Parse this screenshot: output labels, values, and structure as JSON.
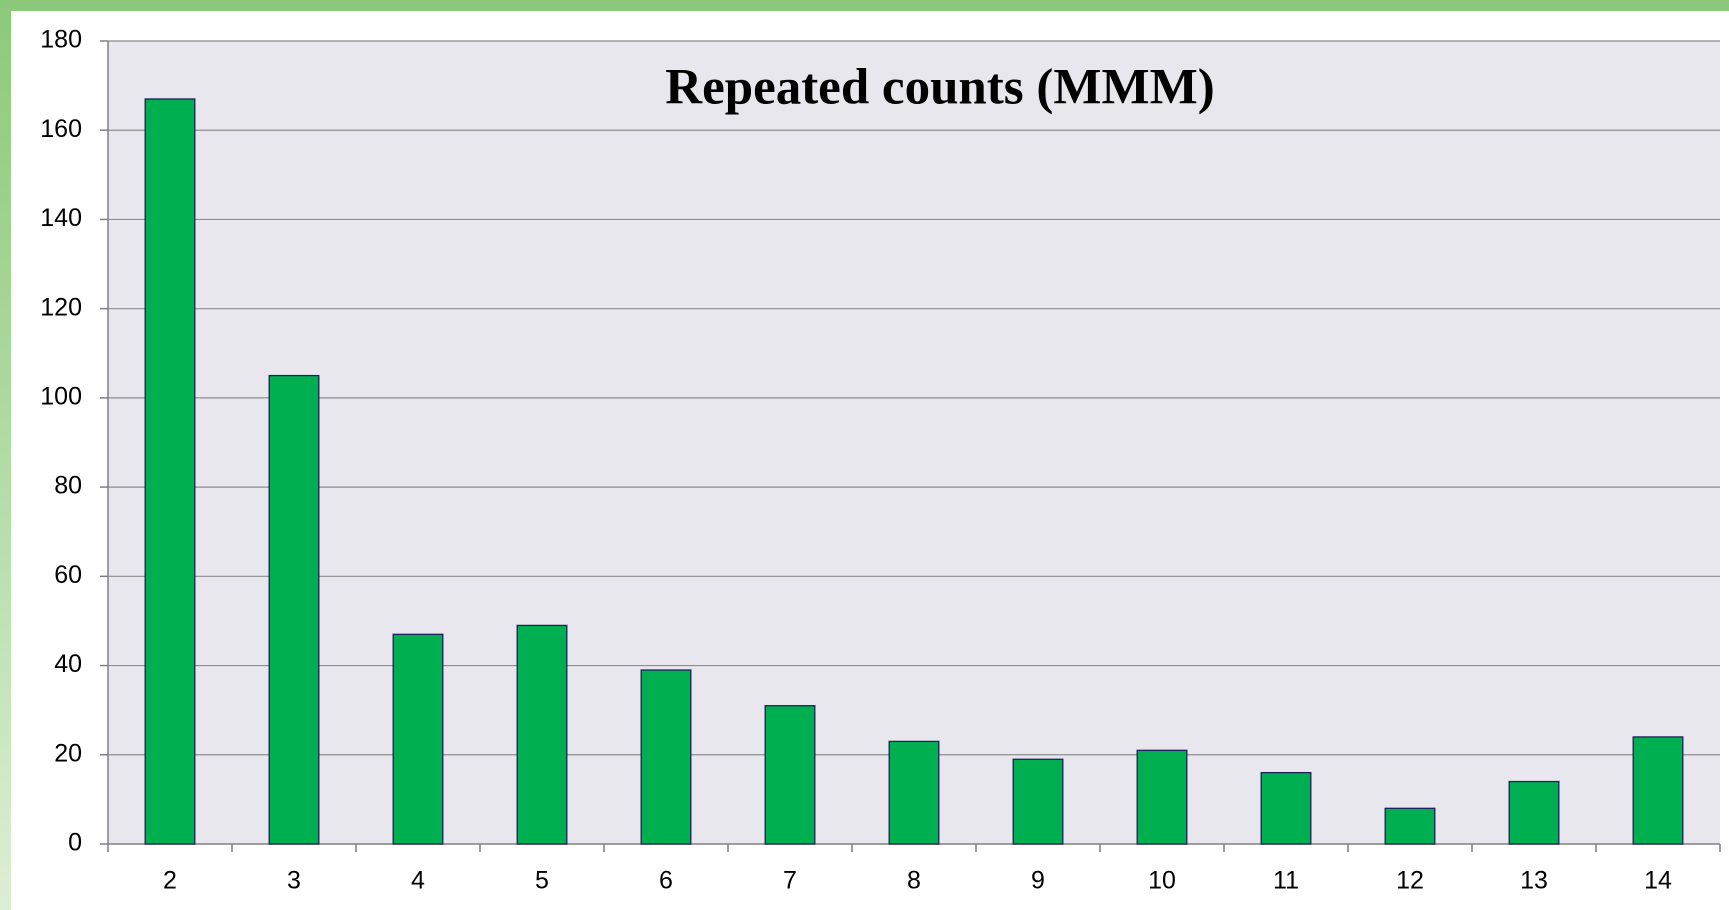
{
  "chart_data": {
    "type": "bar",
    "title": "Repeated counts (MMM)",
    "categories": [
      "2",
      "3",
      "4",
      "5",
      "6",
      "7",
      "8",
      "9",
      "10",
      "11",
      "12",
      "13",
      "14"
    ],
    "values": [
      167,
      105,
      47,
      49,
      39,
      31,
      23,
      19,
      21,
      16,
      8,
      14,
      24
    ],
    "color": "#00b050",
    "ylim": [
      0,
      180
    ],
    "yticks": [
      0,
      20,
      40,
      60,
      80,
      100,
      120,
      140,
      160,
      180
    ],
    "grid": true
  }
}
